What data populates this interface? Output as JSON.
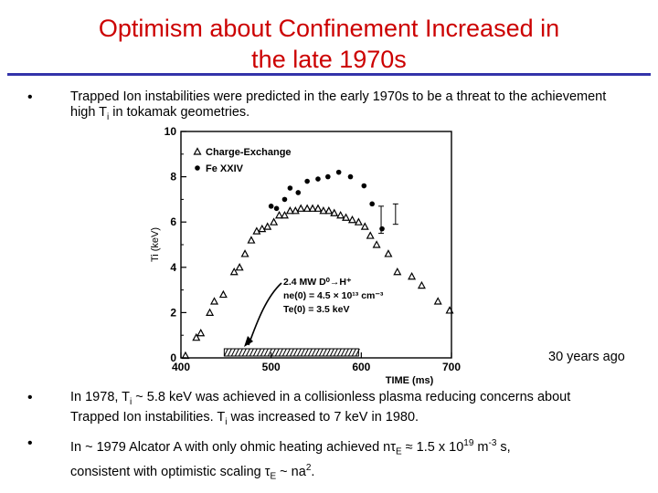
{
  "slide": {
    "title_line1": "Optimism about Confinement Increased in",
    "title_line2": "the late 1970s",
    "accent_color": "#cc0000",
    "rule_color": "#3333aa",
    "bullet_glyph": "•",
    "bullet1": "Trapped Ion instabilities were predicted in the early 1970s to be a threat to the achievement high T",
    "bullet1_sub": "i",
    "bullet1_tail": " in tokamak geometries.",
    "caption": "30 years ago",
    "bullet2_a": "In 1978, T",
    "bullet2_sub1": "i",
    "bullet2_b": " ~ 5.8 keV was achieved in a collisionless plasma reducing concerns about Trapped Ion instabilities.  T",
    "bullet2_sub2": "i",
    "bullet2_c": " was increased to 7 keV in 1980.",
    "bullet3_a": "In ~ 1979 Alcator A with only ohmic heating achieved n",
    "bullet3_tau": "τ",
    "bullet3_sub": "E",
    "bullet3_b": " ≈ 1.5 x 10",
    "bullet3_sup1": "19",
    "bullet3_c": " m",
    "bullet3_sup2": "-3",
    "bullet3_d": " s,",
    "bullet3_line2_a": "consistent with  optimistic scaling ",
    "bullet3_tau2": "τ",
    "bullet3_sub2": "E",
    "bullet3_line2_b": " ~ na",
    "bullet3_sup3": "2",
    "bullet3_line2_c": "."
  },
  "chart_data": {
    "type": "scatter",
    "xlabel": "TIME (ms)",
    "ylabel": "Ti (keV)",
    "xlim": [
      400,
      700
    ],
    "ylim": [
      0,
      10
    ],
    "x_ticks": [
      400,
      500,
      600,
      700
    ],
    "y_ticks": [
      0,
      2,
      4,
      6,
      8,
      10
    ],
    "legend": [
      "Charge-Exchange",
      "Fe XXIV"
    ],
    "legend_position": "top-left",
    "annotation": [
      "2.4 MW D⁰→H⁺",
      "ne(0) = 4.5 × 10¹³ cm⁻³",
      "Te(0) = 3.5 keV"
    ],
    "series": [
      {
        "name": "Charge-Exchange",
        "marker": "triangle",
        "points": [
          [
            405,
            0.1
          ],
          [
            417,
            0.9
          ],
          [
            422,
            1.1
          ],
          [
            432,
            2.0
          ],
          [
            437,
            2.5
          ],
          [
            447,
            2.8
          ],
          [
            459,
            3.8
          ],
          [
            465,
            4.0
          ],
          [
            471,
            4.6
          ],
          [
            478,
            5.2
          ],
          [
            484,
            5.6
          ],
          [
            490,
            5.7
          ],
          [
            496,
            5.8
          ],
          [
            503,
            6.0
          ],
          [
            509,
            6.3
          ],
          [
            515,
            6.3
          ],
          [
            521,
            6.5
          ],
          [
            527,
            6.5
          ],
          [
            533,
            6.6
          ],
          [
            540,
            6.6
          ],
          [
            546,
            6.6
          ],
          [
            552,
            6.6
          ],
          [
            558,
            6.5
          ],
          [
            564,
            6.5
          ],
          [
            570,
            6.4
          ],
          [
            577,
            6.3
          ],
          [
            583,
            6.2
          ],
          [
            590,
            6.1
          ],
          [
            597,
            6.0
          ],
          [
            604,
            5.8
          ],
          [
            610,
            5.4
          ],
          [
            617,
            5.0
          ],
          [
            630,
            4.6
          ],
          [
            640,
            3.8
          ],
          [
            656,
            3.6
          ],
          [
            667,
            3.2
          ],
          [
            685,
            2.5
          ],
          [
            698,
            2.1
          ]
        ]
      },
      {
        "name": "Fe XXIV",
        "marker": "circle",
        "points": [
          [
            500,
            6.7
          ],
          [
            506,
            6.6
          ],
          [
            515,
            7.0
          ],
          [
            521,
            7.5
          ],
          [
            530,
            7.3
          ],
          [
            540,
            7.8
          ],
          [
            552,
            7.9
          ],
          [
            563,
            8.0
          ],
          [
            575,
            8.2
          ],
          [
            588,
            8.0
          ],
          [
            603,
            7.6
          ],
          [
            612,
            6.8
          ],
          [
            623,
            5.7
          ]
        ]
      }
    ],
    "error_bars": [
      [
        622,
        6.0,
        5.5,
        6.7
      ],
      [
        638,
        6.3,
        5.9,
        6.8
      ]
    ]
  }
}
